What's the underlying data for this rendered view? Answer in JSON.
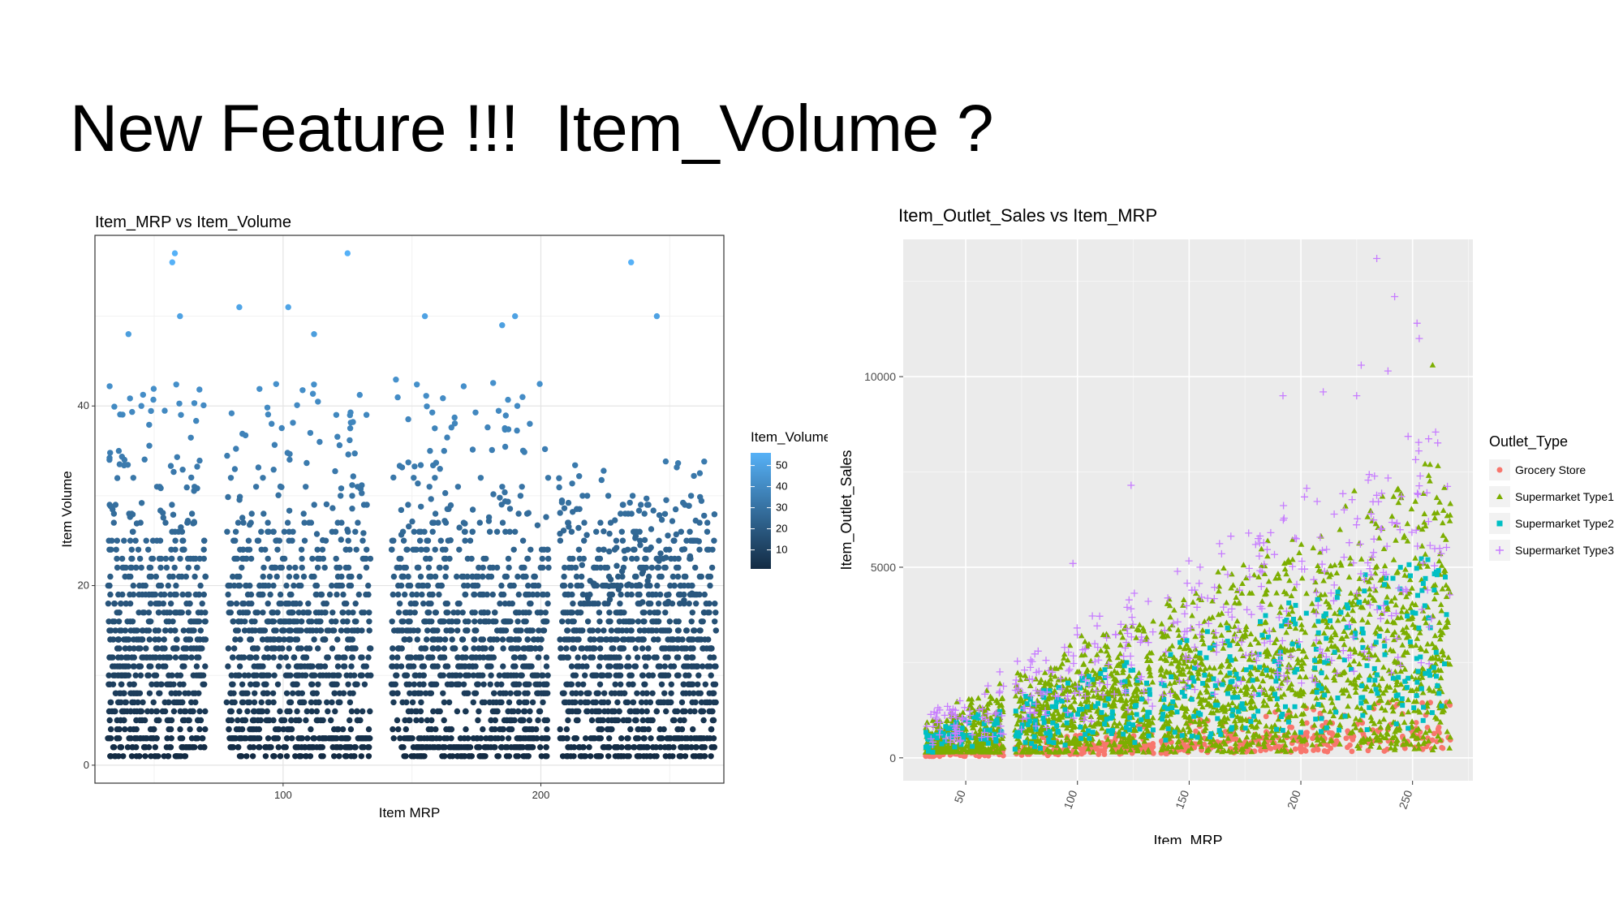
{
  "slide": {
    "title": "New Feature !!!  Item_Volume ?"
  },
  "chart_data": [
    {
      "type": "scatter",
      "title": "Item_MRP vs Item_Volume",
      "xlabel": "Item MRP",
      "ylabel": "Item Volume",
      "xlim": [
        27,
        271
      ],
      "ylim": [
        -2,
        59
      ],
      "x_ticks": [
        100,
        200
      ],
      "y_ticks": [
        0,
        20,
        40
      ],
      "grid": true,
      "panel_background": "#ffffff",
      "legend": {
        "title": "Item_Volume",
        "position": "right",
        "type": "colorbar",
        "breaks": [
          50,
          40,
          30,
          20,
          10
        ],
        "range": [
          1,
          56
        ],
        "color_low": "#132b43",
        "color_high": "#56b1f7"
      },
      "x_clusters": [
        [
          32,
          70
        ],
        [
          78,
          134
        ],
        [
          142,
          203
        ],
        [
          207,
          268
        ]
      ],
      "outliers": [
        {
          "x": 58,
          "y": 57
        },
        {
          "x": 57,
          "y": 56
        },
        {
          "x": 125,
          "y": 57
        },
        {
          "x": 235,
          "y": 56
        },
        {
          "x": 83,
          "y": 51
        },
        {
          "x": 102,
          "y": 51
        },
        {
          "x": 155,
          "y": 50
        },
        {
          "x": 60,
          "y": 50
        },
        {
          "x": 245,
          "y": 50
        },
        {
          "x": 190,
          "y": 50
        },
        {
          "x": 40,
          "y": 48
        },
        {
          "x": 112,
          "y": 48
        },
        {
          "x": 185,
          "y": 49
        }
      ]
    },
    {
      "type": "scatter",
      "title": "Item_Outlet_Sales vs Item_MRP",
      "xlabel": "Item_MRP",
      "ylabel": "Item_Outlet_Sales",
      "xlim": [
        22,
        277
      ],
      "ylim": [
        -600,
        13600
      ],
      "x_ticks": [
        50,
        100,
        150,
        200,
        250
      ],
      "y_ticks": [
        0,
        5000,
        10000
      ],
      "grid": true,
      "panel_background": "#ebebeb",
      "legend": {
        "title": "Outlet_Type",
        "position": "right"
      },
      "x_clusters": [
        [
          32,
          67
        ],
        [
          72,
          134
        ],
        [
          137,
          203
        ],
        [
          205,
          267
        ]
      ],
      "series": [
        {
          "name": "Grocery Store",
          "color": "#f8766d",
          "shape": "circle"
        },
        {
          "name": "Supermarket Type1",
          "color": "#7cae00",
          "shape": "triangle"
        },
        {
          "name": "Supermarket Type2",
          "color": "#00bfc4",
          "shape": "square"
        },
        {
          "name": "Supermarket Type3",
          "color": "#c77cff",
          "shape": "plus"
        }
      ],
      "outliers": [
        {
          "x": 234,
          "y": 13100,
          "series": 3
        },
        {
          "x": 242,
          "y": 12100,
          "series": 3
        },
        {
          "x": 252,
          "y": 11400,
          "series": 3
        },
        {
          "x": 253,
          "y": 11000,
          "series": 3
        },
        {
          "x": 227,
          "y": 10300,
          "series": 3
        },
        {
          "x": 239,
          "y": 10150,
          "series": 3
        },
        {
          "x": 259,
          "y": 10300,
          "series": 1
        },
        {
          "x": 210,
          "y": 9600,
          "series": 3
        },
        {
          "x": 192,
          "y": 9500,
          "series": 3
        },
        {
          "x": 225,
          "y": 9500,
          "series": 3
        },
        {
          "x": 124,
          "y": 7150,
          "series": 3
        },
        {
          "x": 98,
          "y": 5100,
          "series": 3
        }
      ]
    }
  ]
}
